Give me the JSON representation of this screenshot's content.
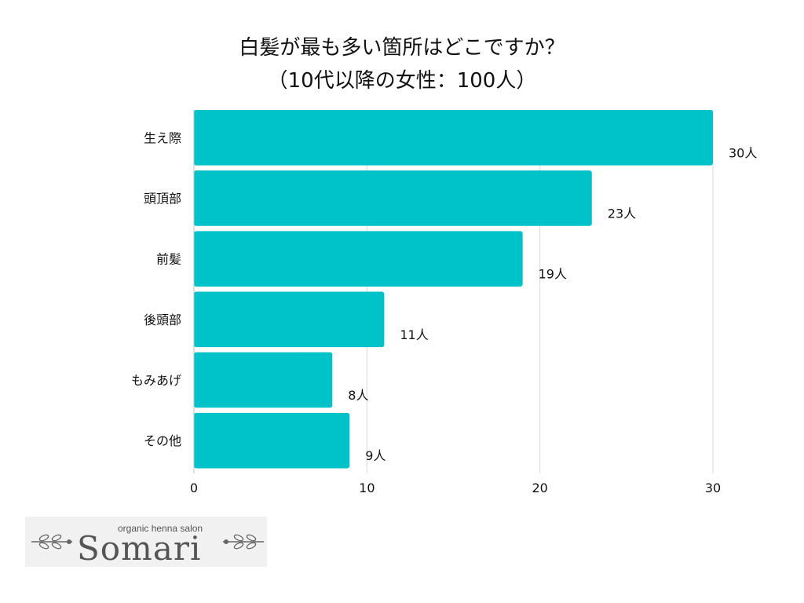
{
  "chart_data": {
    "type": "bar",
    "orientation": "horizontal",
    "title": "白髪が最も多い箇所はどこですか？",
    "subtitle": "（10代以降の女性：100人）",
    "categories": [
      "生え際",
      "頭頂部",
      "前髪",
      "後頭部",
      "もみあげ",
      "その他"
    ],
    "values": [
      30,
      23,
      19,
      11,
      8,
      9
    ],
    "value_labels": [
      "30人",
      "23人",
      "19人",
      "11人",
      "8人",
      "9人"
    ],
    "xlim": [
      0,
      30
    ],
    "x_ticks": [
      "0",
      "10",
      "20",
      "30"
    ],
    "grid": true,
    "bar_color": "#00C2C9",
    "xlabel": "",
    "ylabel": ""
  },
  "logo": {
    "tagline": "organic henna salon",
    "name": "Somari"
  }
}
